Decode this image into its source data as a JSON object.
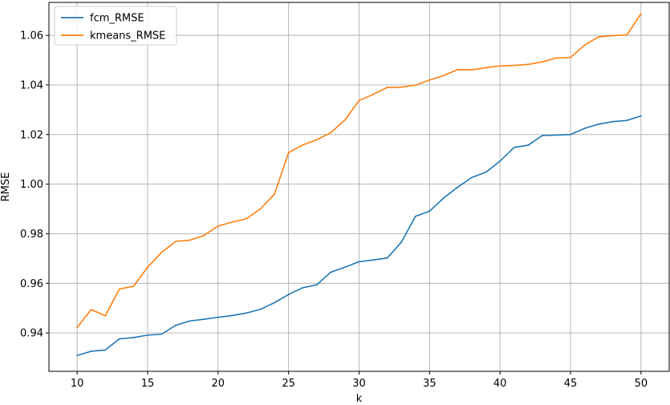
{
  "chart_data": {
    "type": "line",
    "title": "",
    "xlabel": "k",
    "ylabel": "RMSE",
    "xlim": [
      8,
      52
    ],
    "ylim": [
      0.9245,
      1.0733
    ],
    "grid": true,
    "legend_position": "top-left",
    "x_ticks": [
      10,
      15,
      20,
      25,
      30,
      35,
      40,
      45,
      50
    ],
    "x_tick_labels": [
      "10",
      "15",
      "20",
      "25",
      "30",
      "35",
      "40",
      "45",
      "50"
    ],
    "y_ticks": [
      0.94,
      0.96,
      0.98,
      1.0,
      1.02,
      1.04,
      1.06
    ],
    "y_tick_labels": [
      "0.94",
      "0.96",
      "0.98",
      "1.00",
      "1.02",
      "1.04",
      "1.06"
    ],
    "x": [
      10,
      11,
      12,
      13,
      14,
      15,
      16,
      17,
      18,
      19,
      20,
      21,
      22,
      23,
      24,
      25,
      26,
      27,
      28,
      29,
      30,
      31,
      32,
      33,
      34,
      35,
      36,
      37,
      38,
      39,
      40,
      41,
      42,
      43,
      44,
      45,
      46,
      47,
      48,
      49,
      50
    ],
    "series": [
      {
        "name": "fcm_RMSE",
        "color": "#1f77b4",
        "values": [
          0.9309,
          0.9326,
          0.9331,
          0.9376,
          0.9381,
          0.9391,
          0.9395,
          0.9431,
          0.9448,
          0.9455,
          0.9463,
          0.947,
          0.948,
          0.9495,
          0.9522,
          0.9555,
          0.9582,
          0.9594,
          0.9645,
          0.9665,
          0.9687,
          0.9694,
          0.9702,
          0.9766,
          0.987,
          0.9891,
          0.9944,
          0.9988,
          1.0027,
          1.0048,
          1.0093,
          1.0148,
          1.0157,
          1.0196,
          1.0198,
          1.02,
          1.0225,
          1.0242,
          1.0252,
          1.0257,
          1.0275
        ]
      },
      {
        "name": "kmeans_RMSE",
        "color": "#ff7f0e",
        "values": [
          0.9422,
          0.9494,
          0.9469,
          0.9577,
          0.9588,
          0.9665,
          0.9725,
          0.9769,
          0.9774,
          0.9793,
          0.9831,
          0.9847,
          0.986,
          0.99,
          0.996,
          1.0127,
          1.0158,
          1.0179,
          1.0208,
          1.0259,
          1.0337,
          1.0362,
          1.039,
          1.0391,
          1.0399,
          1.042,
          1.0438,
          1.0462,
          1.0461,
          1.047,
          1.0477,
          1.0479,
          1.0483,
          1.0493,
          1.0509,
          1.0511,
          1.0561,
          1.0594,
          1.0599,
          1.0602,
          1.0687
        ]
      }
    ]
  }
}
